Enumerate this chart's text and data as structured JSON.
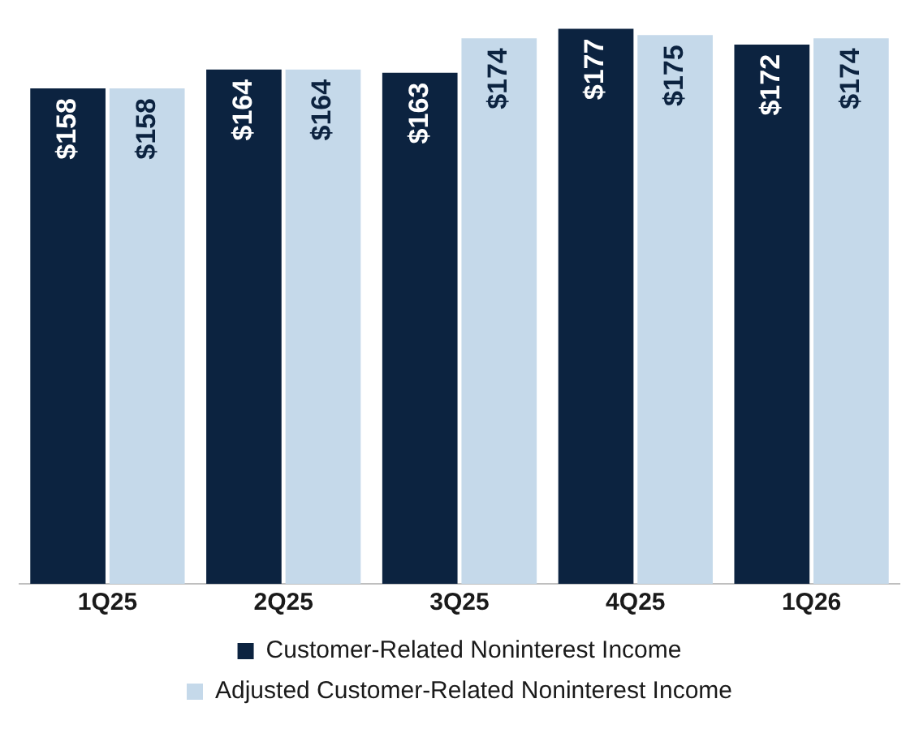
{
  "chart_data": {
    "type": "bar",
    "categories": [
      "1Q25",
      "2Q25",
      "3Q25",
      "4Q25",
      "1Q26"
    ],
    "series": [
      {
        "name": "Customer-Related Noninterest Income",
        "color": "#0c2340",
        "values": [
          158,
          164,
          163,
          177,
          172
        ],
        "value_labels": [
          "$158",
          "$164",
          "$163",
          "$177",
          "$172"
        ]
      },
      {
        "name": "Adjusted Customer-Related Noninterest Income",
        "color": "#c5d9ea",
        "values": [
          158,
          164,
          174,
          175,
          174
        ],
        "value_labels": [
          "$158",
          "$164",
          "$174",
          "$175",
          "$174"
        ]
      }
    ],
    "tick_labels": "x",
    "grid": false,
    "legend": "bottom"
  }
}
